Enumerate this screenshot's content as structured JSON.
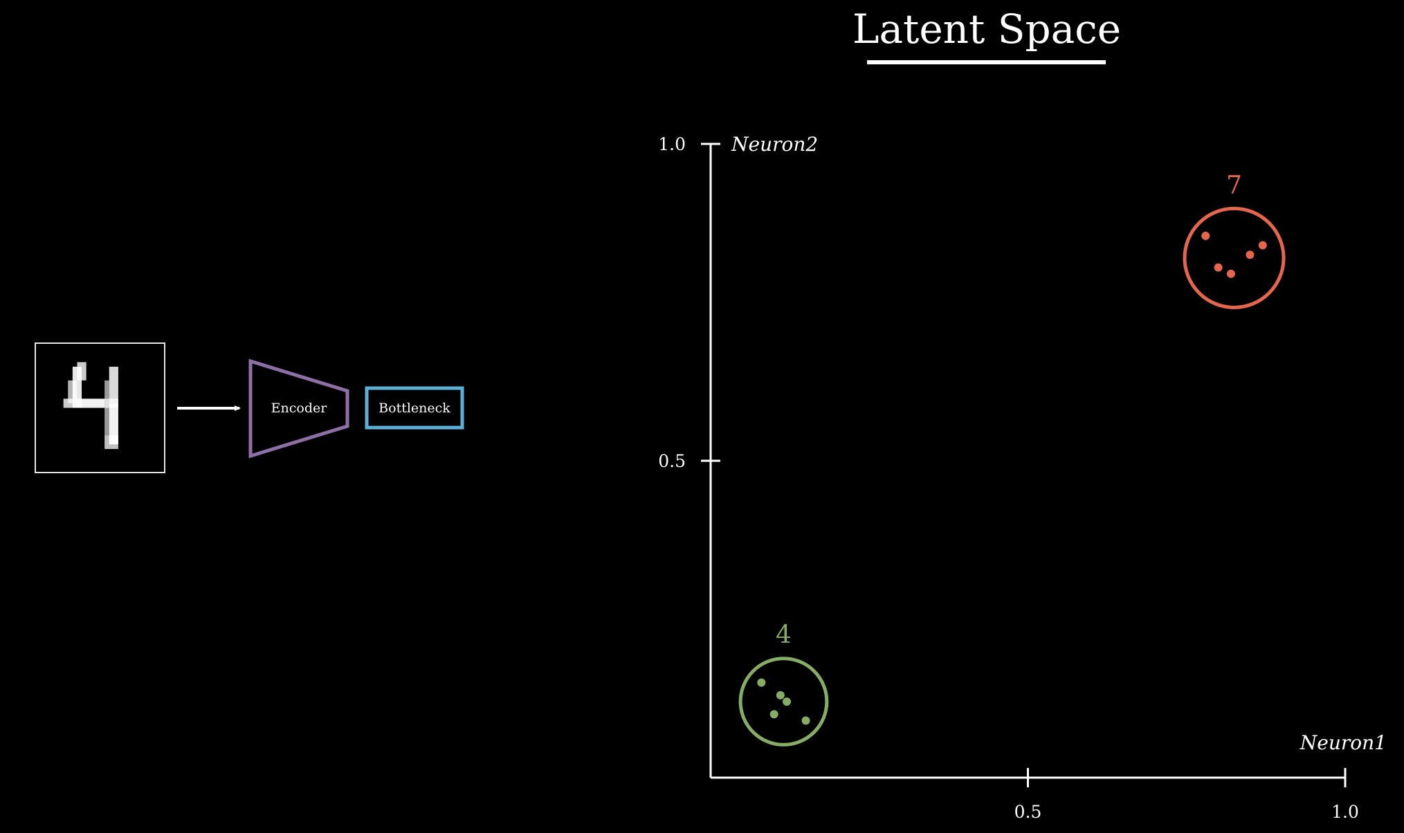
{
  "title": "Latent Space",
  "pipeline": {
    "input_digit": "4",
    "encoder_label": "Encoder",
    "bottleneck_label": "Bottleneck"
  },
  "colors": {
    "background": "#000000",
    "foreground": "#ffffff",
    "encoder": "#8e6fa6",
    "bottleneck": "#5ab0d6",
    "cluster_4": "#86ad63",
    "cluster_7": "#e5664c"
  },
  "chart_data": {
    "type": "scatter",
    "xlabel": "Neuron1",
    "ylabel": "Neuron2",
    "xlim": [
      0,
      1.0
    ],
    "ylim": [
      0,
      1.0
    ],
    "x_ticks": [
      {
        "value": 0.5,
        "label": "0.5"
      },
      {
        "value": 1.0,
        "label": "1.0"
      }
    ],
    "y_ticks": [
      {
        "value": 0.5,
        "label": "0.5"
      },
      {
        "value": 1.0,
        "label": "1.0"
      }
    ],
    "grid": false,
    "clusters": [
      {
        "label": "4",
        "color": "#86ad63",
        "center": [
          0.115,
          0.12
        ],
        "radius": 0.068,
        "points": [
          [
            0.08,
            0.15
          ],
          [
            0.11,
            0.13
          ],
          [
            0.12,
            0.12
          ],
          [
            0.1,
            0.1
          ],
          [
            0.15,
            0.09
          ]
        ]
      },
      {
        "label": "7",
        "color": "#e5664c",
        "center": [
          0.825,
          0.82
        ],
        "radius": 0.078,
        "points": [
          [
            0.78,
            0.855
          ],
          [
            0.8,
            0.805
          ],
          [
            0.82,
            0.795
          ],
          [
            0.85,
            0.825
          ],
          [
            0.87,
            0.84
          ]
        ]
      }
    ]
  }
}
